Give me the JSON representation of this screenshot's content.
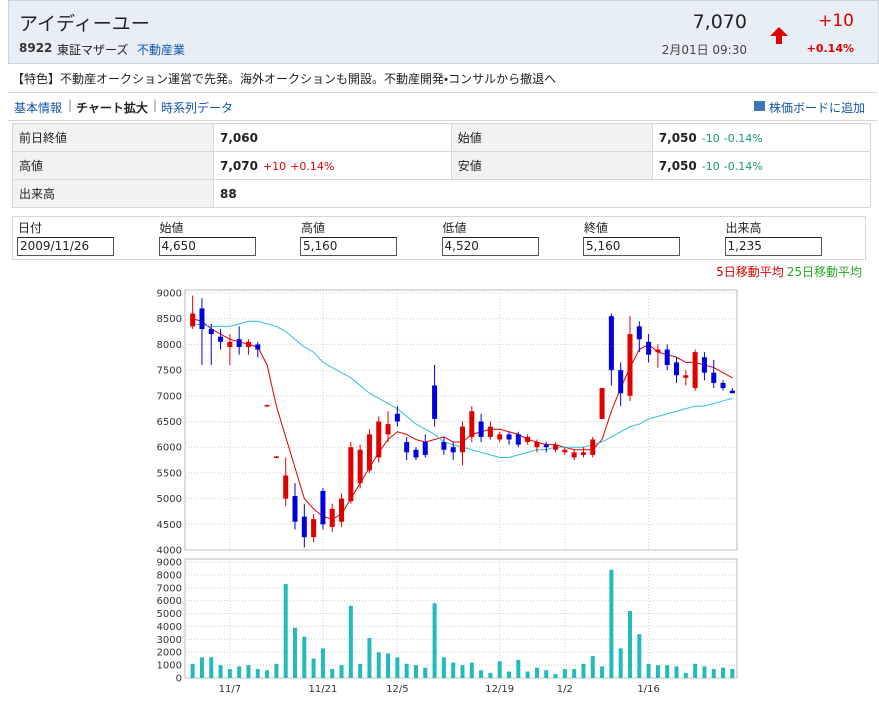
{
  "header": {
    "name": "アイディーユー",
    "code": "8922",
    "market": "東証マザーズ",
    "sector": "不動産業",
    "price": "7,070",
    "change": "+10",
    "change_pct": "+0.14%",
    "datetime": "2月01日 09:30"
  },
  "feature": "【特色】不動産オークション運営で先発。海外オークションも開設。不動産開発・コンサルから撤退へ",
  "nav": {
    "links": [
      "基本情報",
      "チャート拡大",
      "時系列データ"
    ],
    "add": "株価ボードに追加"
  },
  "quote_table": {
    "rows": [
      [
        {
          "text": "前日終値"
        },
        {
          "text": "7,060"
        },
        {
          "text": "始値"
        },
        {
          "text": "7,050",
          "change": "-10",
          "pct": "-0.14%"
        }
      ],
      [
        {
          "text": "高値"
        },
        {
          "text": "7,070",
          "change": "+10",
          "pct": "+0.14%"
        },
        {
          "text": "安値"
        },
        {
          "text": "7,050",
          "change": "-10",
          "pct": "-0.14%"
        }
      ],
      [
        {
          "text": "出来高"
        },
        {
          "text": "88"
        }
      ]
    ]
  },
  "ohlc_form": {
    "headers": [
      "日付",
      "始値",
      "高値",
      "低値",
      "終値",
      "出来高"
    ],
    "values": [
      "2009/11/26",
      "4,650",
      "5,160",
      "4,520",
      "5,160",
      "1,235"
    ]
  },
  "chart_data": [
    {
      "type": "candlestick",
      "up_color": "#e00000",
      "down_color": "#0000dd",
      "ylim": [
        4000,
        9000
      ],
      "yticks": [
        4000,
        4500,
        5000,
        5500,
        6000,
        6500,
        7000,
        7500,
        8000,
        8500,
        9000
      ],
      "grid": true,
      "open": [
        8350,
        8700,
        8300,
        8150,
        7950,
        8100,
        7950,
        8000,
        6800,
        5800,
        5000,
        5050,
        4650,
        4250,
        5150,
        4450,
        4550,
        4950,
        5300,
        5550,
        5800,
        6250,
        6650,
        6100,
        5950,
        6100,
        7200,
        6100,
        6000,
        5900,
        6200,
        6500,
        6200,
        6150,
        6250,
        6250,
        6100,
        6000,
        6050,
        5950,
        5900,
        5800,
        5850,
        5850,
        6550,
        8550,
        7500,
        7000,
        8350,
        8050,
        7850,
        7900,
        7650,
        7350,
        7150,
        7750,
        7450,
        7250,
        7100
      ],
      "high": [
        8950,
        8900,
        8400,
        8300,
        8200,
        8350,
        8100,
        8050,
        6830,
        5830,
        5800,
        5300,
        4900,
        4700,
        5200,
        4900,
        5100,
        6100,
        6050,
        6350,
        6600,
        6700,
        6800,
        6200,
        6000,
        6250,
        7600,
        6200,
        6100,
        6500,
        6800,
        6650,
        6500,
        6300,
        6300,
        6300,
        6250,
        6150,
        6100,
        6100,
        6000,
        5950,
        6000,
        6200,
        7150,
        8600,
        7650,
        8550,
        8450,
        8200,
        8000,
        8000,
        7750,
        7500,
        7900,
        7850,
        7700,
        7300,
        7150
      ],
      "low": [
        8300,
        7600,
        7600,
        7900,
        7600,
        7800,
        7800,
        7750,
        6790,
        5790,
        4850,
        4400,
        4050,
        4150,
        4400,
        4350,
        4450,
        4900,
        5200,
        5500,
        5700,
        6100,
        6400,
        5750,
        5750,
        5800,
        6400,
        5850,
        5750,
        5650,
        6100,
        6100,
        6150,
        6100,
        6050,
        6000,
        6050,
        5900,
        5900,
        5900,
        5850,
        5750,
        5800,
        5800,
        6550,
        7200,
        6800,
        6900,
        7850,
        7650,
        7550,
        7500,
        7250,
        7200,
        7100,
        7300,
        7150,
        7100,
        7050
      ],
      "close": [
        8600,
        8300,
        8200,
        8050,
        8050,
        7950,
        8050,
        7900,
        6820,
        5820,
        5450,
        4550,
        4250,
        4600,
        4500,
        4800,
        5000,
        6000,
        5950,
        6250,
        6500,
        6450,
        6500,
        5900,
        5800,
        5850,
        6550,
        5950,
        5900,
        6400,
        6700,
        6200,
        6400,
        6250,
        6150,
        6050,
        6200,
        6100,
        6000,
        6050,
        5950,
        5900,
        5900,
        6150,
        7150,
        7500,
        7050,
        8200,
        8100,
        7800,
        7900,
        7600,
        7400,
        7400,
        7850,
        7450,
        7250,
        7150,
        7050
      ],
      "series": [
        {
          "name": "5日移動平均",
          "color": "#dd0000",
          "label_color": "#e00000",
          "values": [
            8500,
            8450,
            8300,
            8200,
            8100,
            8050,
            8000,
            7950,
            7600,
            6800,
            6200,
            5600,
            5000,
            4800,
            4650,
            4600,
            4700,
            5000,
            5300,
            5600,
            5900,
            6150,
            6300,
            6250,
            6150,
            6100,
            6150,
            6200,
            6100,
            6100,
            6250,
            6300,
            6350,
            6350,
            6300,
            6250,
            6150,
            6100,
            6050,
            6050,
            6000,
            5950,
            5950,
            5950,
            6150,
            6700,
            7150,
            7550,
            7900,
            8000,
            7850,
            7800,
            7750,
            7650,
            7650,
            7600,
            7550,
            7450,
            7350
          ]
        },
        {
          "name": "25日移動平均",
          "color": "#33c0d8",
          "label_color": "#22aa22",
          "values": [
            8400,
            8380,
            8350,
            8350,
            8350,
            8400,
            8450,
            8450,
            8400,
            8350,
            8250,
            8100,
            7950,
            7850,
            7650,
            7550,
            7450,
            7350,
            7200,
            7050,
            6950,
            6850,
            6750,
            6600,
            6450,
            6350,
            6250,
            6100,
            6050,
            6000,
            5950,
            5900,
            5850,
            5800,
            5800,
            5850,
            5900,
            5950,
            5950,
            6000,
            6000,
            6000,
            6000,
            6050,
            6100,
            6200,
            6300,
            6400,
            6450,
            6550,
            6600,
            6650,
            6700,
            6750,
            6800,
            6800,
            6850,
            6900,
            6950
          ]
        }
      ]
    },
    {
      "type": "bar",
      "color": "#22bbbb",
      "ylim": [
        0,
        9000
      ],
      "yticks": [
        0,
        1000,
        2000,
        3000,
        4000,
        5000,
        6000,
        7000,
        8000,
        9000
      ],
      "grid": true,
      "categories": [
        null,
        null,
        null,
        null,
        "11/7",
        null,
        null,
        null,
        null,
        null,
        null,
        null,
        null,
        null,
        "11/21",
        null,
        null,
        null,
        null,
        null,
        null,
        null,
        "12/5",
        null,
        null,
        null,
        null,
        null,
        null,
        null,
        null,
        null,
        null,
        "12/19",
        null,
        null,
        null,
        null,
        null,
        null,
        "1/2",
        null,
        null,
        null,
        null,
        null,
        null,
        null,
        null,
        "1/16",
        null,
        null,
        null,
        null,
        null,
        null,
        null,
        null,
        null
      ],
      "values": [
        1100,
        1600,
        1600,
        1000,
        700,
        900,
        1000,
        700,
        600,
        1100,
        7300,
        3900,
        3200,
        1500,
        2300,
        700,
        1000,
        5600,
        1100,
        3100,
        2000,
        1900,
        1600,
        1100,
        1000,
        800,
        5800,
        1600,
        1200,
        1000,
        1200,
        600,
        400,
        1300,
        500,
        1400,
        500,
        800,
        600,
        300,
        700,
        700,
        1100,
        1700,
        900,
        8400,
        2300,
        5200,
        3400,
        1100,
        1000,
        1000,
        900,
        400,
        1100,
        900,
        700,
        800,
        700
      ]
    }
  ]
}
